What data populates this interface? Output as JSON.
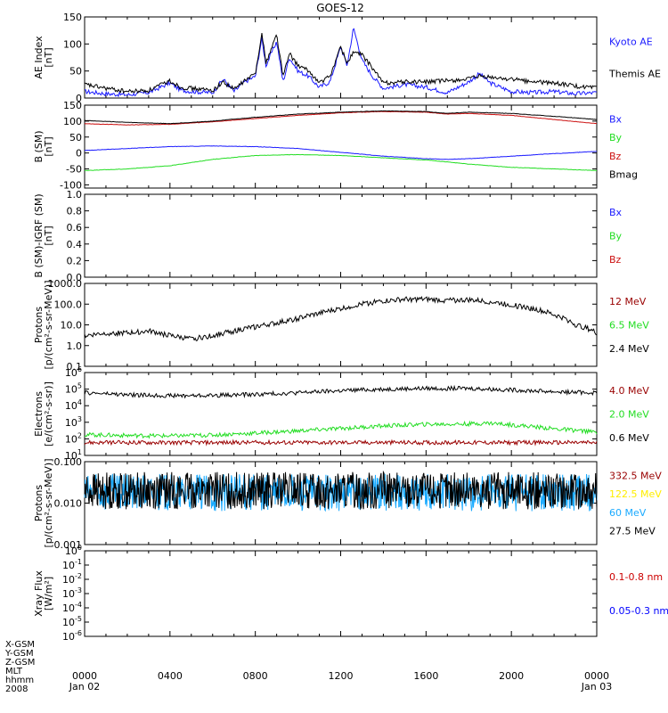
{
  "title": "GOES-12",
  "colors": {
    "black": "#000000",
    "blue": "#1a1aff",
    "green": "#22dd22",
    "red": "#cc1111",
    "darkred": "#990000",
    "cyan": "#19aaff",
    "yellow": "#ffee00",
    "xray_red": "#cc0000",
    "xray_blue": "#0000ff"
  },
  "footer": {
    "row_labels": [
      "X-GSM",
      "Y-GSM",
      "Z-GSM",
      "MLT",
      "hhmm",
      "2008"
    ],
    "date_start": "Jan 02",
    "date_end": "Jan 03"
  },
  "chart_data": [
    {
      "id": "ae",
      "type": "line",
      "ylabel_lines": [
        "AE Index",
        "[nT]"
      ],
      "ylim": [
        0,
        150
      ],
      "yticks": [
        "0",
        "50",
        "100",
        "150"
      ],
      "x_hours": [
        0,
        24
      ],
      "xtick_labels": [
        "0000",
        "0400",
        "0800",
        "1200",
        "1600",
        "2000",
        "0000"
      ],
      "series": [
        {
          "name": "Kyoto AE",
          "color_key": "blue",
          "x": [
            0,
            1,
            2,
            3,
            4,
            4.5,
            5,
            6,
            6.5,
            7,
            7.5,
            8,
            8.3,
            8.5,
            9,
            9.3,
            9.6,
            10,
            10.5,
            11,
            11.5,
            12,
            12.3,
            12.6,
            13,
            13.5,
            14,
            15,
            16,
            17,
            18,
            18.5,
            19,
            20,
            21,
            22,
            23,
            24
          ],
          "y": [
            12,
            8,
            6,
            10,
            28,
            15,
            12,
            10,
            35,
            12,
            30,
            40,
            110,
            60,
            105,
            30,
            75,
            50,
            40,
            20,
            30,
            95,
            60,
            130,
            70,
            40,
            18,
            25,
            20,
            10,
            30,
            45,
            28,
            12,
            10,
            12,
            8,
            10
          ]
        },
        {
          "name": "Themis AE",
          "color_key": "black",
          "x": [
            0,
            1,
            2,
            3,
            4,
            4.5,
            5,
            6,
            6.5,
            7,
            7.5,
            8,
            8.3,
            8.5,
            9,
            9.3,
            9.6,
            10,
            10.5,
            11,
            11.5,
            12,
            12.3,
            12.6,
            13,
            13.5,
            14,
            15,
            16,
            17,
            18,
            18.5,
            19,
            20,
            21,
            22,
            23,
            24
          ],
          "y": [
            25,
            18,
            12,
            14,
            32,
            20,
            18,
            14,
            30,
            16,
            32,
            45,
            120,
            65,
            118,
            40,
            82,
            60,
            50,
            28,
            40,
            95,
            65,
            85,
            80,
            55,
            28,
            30,
            30,
            32,
            35,
            40,
            38,
            35,
            30,
            28,
            22,
            18
          ]
        }
      ]
    },
    {
      "id": "bsm",
      "type": "line",
      "ylabel_lines": [
        "B (SM)",
        "[nT]"
      ],
      "ylim": [
        -110,
        150
      ],
      "yticks": [
        "-100",
        "-50",
        "0",
        "50",
        "100",
        "150"
      ],
      "ytick_values": [
        -100,
        -50,
        0,
        50,
        100,
        150
      ],
      "series": [
        {
          "name": "Bx",
          "color_key": "blue",
          "x": [
            0,
            2,
            4,
            6,
            8,
            10,
            12,
            14,
            16,
            17,
            18,
            20,
            22,
            24
          ],
          "y": [
            8,
            14,
            20,
            22,
            20,
            14,
            2,
            -10,
            -18,
            -20,
            -18,
            -10,
            -2,
            5
          ]
        },
        {
          "name": "By",
          "color_key": "green",
          "x": [
            0,
            2,
            4,
            6,
            8,
            10,
            12,
            14,
            16,
            17,
            18,
            20,
            22,
            24
          ],
          "y": [
            -55,
            -50,
            -40,
            -20,
            -8,
            -5,
            -8,
            -15,
            -22,
            -28,
            -35,
            -45,
            -50,
            -55
          ]
        },
        {
          "name": "Bz",
          "color_key": "red",
          "x": [
            0,
            2,
            4,
            6,
            8,
            10,
            12,
            14,
            16,
            17,
            18,
            20,
            22,
            24
          ],
          "y": [
            92,
            88,
            90,
            98,
            108,
            118,
            126,
            130,
            128,
            122,
            124,
            118,
            105,
            92
          ]
        },
        {
          "name": "Bmag",
          "color_key": "black",
          "x": [
            0,
            2,
            4,
            6,
            8,
            10,
            12,
            14,
            16,
            17,
            18,
            20,
            22,
            24
          ],
          "y": [
            102,
            96,
            92,
            100,
            112,
            122,
            128,
            132,
            130,
            124,
            128,
            124,
            115,
            105
          ]
        }
      ]
    },
    {
      "id": "bigrf",
      "type": "line",
      "ylabel_lines": [
        "B (SM)-IGRF (SM)",
        "[nT]"
      ],
      "ylim": [
        0,
        1
      ],
      "yticks": [
        "0.0",
        "0.2",
        "0.4",
        "0.6",
        "0.8",
        "1.0"
      ],
      "series": [
        {
          "name": "Bx",
          "color_key": "blue",
          "x": [],
          "y": []
        },
        {
          "name": "By",
          "color_key": "green",
          "x": [],
          "y": []
        },
        {
          "name": "Bz",
          "color_key": "red",
          "x": [],
          "y": []
        }
      ]
    },
    {
      "id": "protons_low",
      "type": "line",
      "log": true,
      "ylabel_lines": [
        "Protons",
        "[p/(cm²-s-sr-MeV)]"
      ],
      "ylim": [
        0.1,
        1000
      ],
      "yticks": [
        "0.1",
        "1.0",
        "10.0",
        "100.0",
        "1000.0"
      ],
      "series": [
        {
          "name": "12 MeV",
          "color_key": "darkred",
          "x": [],
          "y": []
        },
        {
          "name": "6.5 MeV",
          "color_key": "green",
          "x": [],
          "y": []
        },
        {
          "name": "2.4 MeV",
          "color_key": "black",
          "x": [
            0,
            1,
            2,
            3,
            4,
            5,
            6,
            7,
            8,
            9,
            10,
            11,
            12,
            13,
            14,
            15,
            16,
            17,
            18,
            19,
            20,
            21,
            22,
            23,
            24
          ],
          "y": [
            3,
            4,
            4,
            5,
            3,
            2,
            3,
            5,
            8,
            12,
            20,
            35,
            60,
            100,
            140,
            170,
            170,
            150,
            160,
            130,
            90,
            60,
            30,
            10,
            4
          ]
        }
      ]
    },
    {
      "id": "electrons",
      "type": "line",
      "log": true,
      "ylabel_lines": [
        "Electrons",
        "[e/(cm²-s-sr)]"
      ],
      "ylim": [
        10,
        1000000
      ],
      "yticks": [
        "10^1",
        "10^2",
        "10^3",
        "10^4",
        "10^5",
        "10^6"
      ],
      "series": [
        {
          "name": "4.0 MeV",
          "color_key": "darkred",
          "x": [
            0,
            24
          ],
          "y": [
            60,
            60
          ]
        },
        {
          "name": "2.0 MeV",
          "color_key": "green",
          "x": [
            0,
            2,
            4,
            6,
            8,
            10,
            12,
            14,
            16,
            18,
            19,
            20,
            22,
            24
          ],
          "y": [
            180,
            160,
            150,
            170,
            220,
            300,
            420,
            600,
            750,
            800,
            900,
            700,
            400,
            250
          ]
        },
        {
          "name": "0.6 MeV",
          "color_key": "black",
          "x": [
            0,
            2,
            4,
            6,
            8,
            10,
            12,
            14,
            16,
            18,
            20,
            22,
            24
          ],
          "y": [
            60000,
            45000,
            40000,
            42000,
            48000,
            60000,
            80000,
            100000,
            110000,
            110000,
            90000,
            70000,
            60000
          ]
        }
      ]
    },
    {
      "id": "protons_high",
      "type": "line",
      "log": true,
      "ylabel_lines": [
        "Protons",
        "[p/(cm²-s-sr-MeV)]"
      ],
      "ylim": [
        0.001,
        0.1
      ],
      "yticks": [
        "0.001",
        "0.010",
        "0.100"
      ],
      "series": [
        {
          "name": "332.5 MeV",
          "color_key": "darkred",
          "x": [],
          "y": []
        },
        {
          "name": "122.5 MeV",
          "color_key": "yellow",
          "x": [],
          "y": []
        },
        {
          "name": "60 MeV",
          "color_key": "cyan",
          "x": [
            0,
            24
          ],
          "y": [
            0.018,
            0.018
          ]
        },
        {
          "name": "27.5 MeV",
          "color_key": "black",
          "x": [
            0,
            24
          ],
          "y": [
            0.02,
            0.02
          ]
        }
      ]
    },
    {
      "id": "xray",
      "type": "line",
      "log": true,
      "ylabel_lines": [
        "Xray Flux",
        "[W/m²]"
      ],
      "ylim": [
        1e-06,
        1
      ],
      "yticks": [
        "10^-6",
        "10^-5",
        "10^-4",
        "10^-3",
        "10^-2",
        "10^-1",
        "10^0"
      ],
      "series": [
        {
          "name": "0.1-0.8 nm",
          "color_key": "xray_red",
          "x": [],
          "y": []
        },
        {
          "name": "0.05-0.3 nm",
          "color_key": "xray_blue",
          "x": [],
          "y": []
        }
      ]
    }
  ]
}
